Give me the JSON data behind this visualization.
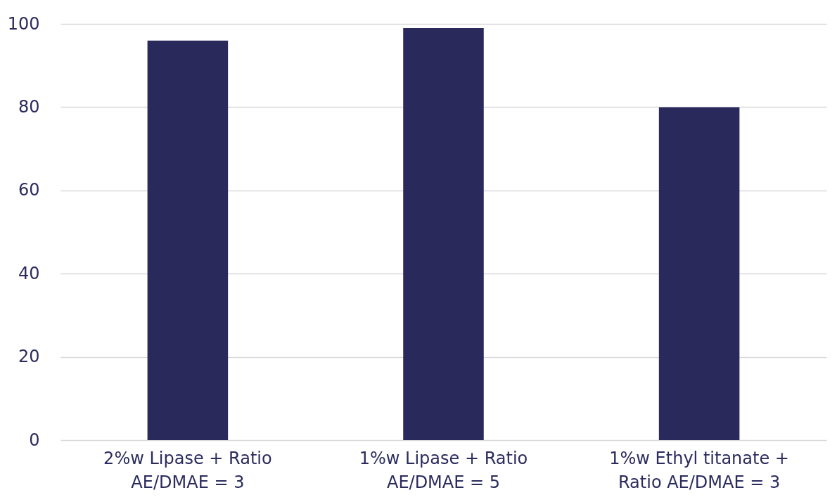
{
  "chart_data": {
    "type": "bar",
    "categories": [
      "2%w Lipase + Ratio\nAE/DMAE = 3",
      "1%w Lipase + Ratio\nAE/DMAE = 5",
      "1%w Ethyl titanate +\nRatio AE/DMAE = 3"
    ],
    "values": [
      96,
      99,
      80
    ],
    "color": "#29295c",
    "ylim": [
      0,
      100
    ],
    "yticks": [
      0,
      20,
      40,
      60,
      80,
      100
    ],
    "grid": "y"
  }
}
